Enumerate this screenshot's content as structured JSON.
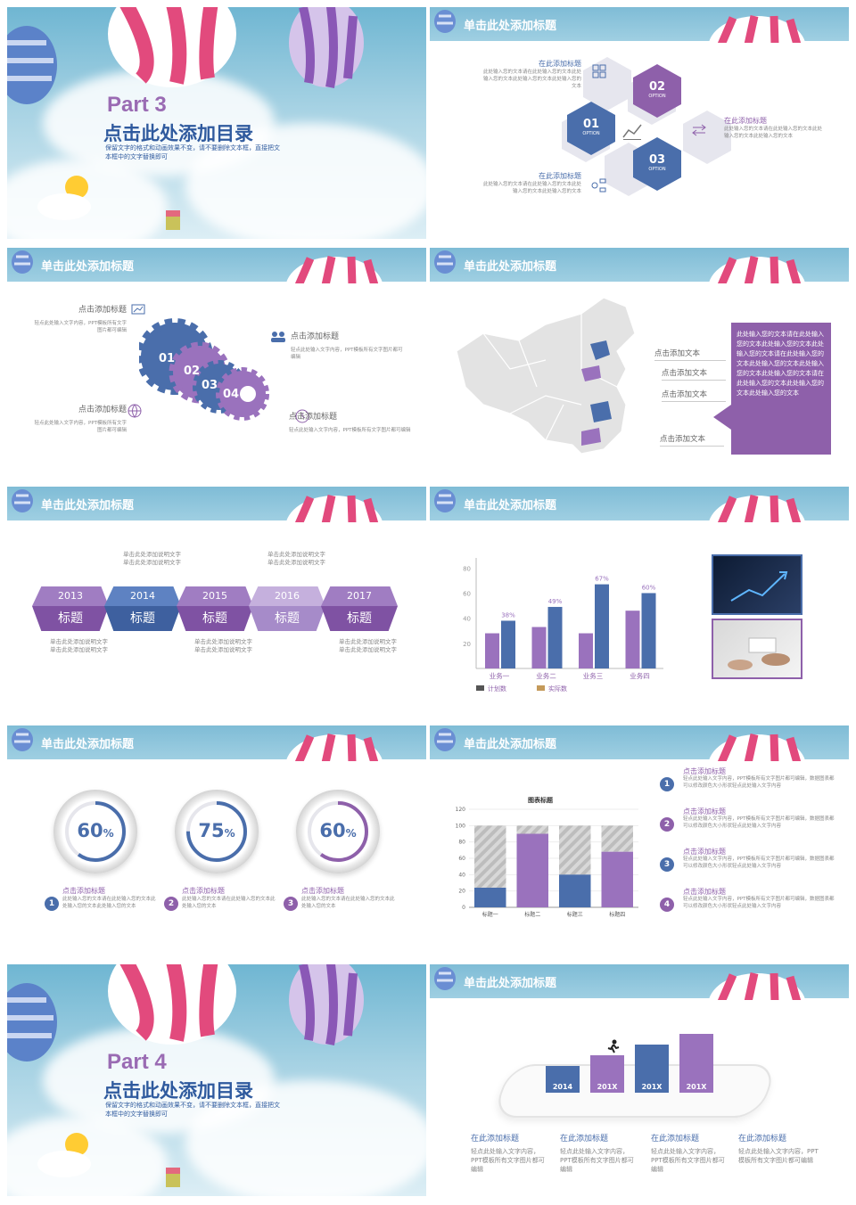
{
  "colors": {
    "purple": "#9a6bb3",
    "blue": "#4a6eab",
    "light_purple": "#b79fd0",
    "header": "#8cc4da"
  },
  "common": {
    "header_title": "单击此处添加标题"
  },
  "cover1": {
    "part": "Part 3",
    "title": "点击此处添加目录",
    "desc": "保留文字的格式和动画效果不变，请不要删除文本框，直接把文本框中的文字替换即可"
  },
  "cover2": {
    "part": "Part 4",
    "title": "点击此处添加目录",
    "desc": "保留文字的格式和动画效果不变，请不要删除文本框，直接把文本框中的文字替换即可"
  },
  "slide_hex": {
    "hexes": [
      {
        "num": "01",
        "sub": "OPTION"
      },
      {
        "num": "02",
        "sub": "OPTION"
      },
      {
        "num": "03",
        "sub": "OPTION"
      }
    ],
    "items": [
      {
        "title": "在此添加标题",
        "text": "此处输入您的文本请在此处输入您的文本此处输入您的文本此处输入您的文本此处输入您的文本"
      },
      {
        "title": "在此添加标题",
        "text": "此处输入您的文本请在此处输入您的文本此处输入您的文本此处输入您的文本"
      },
      {
        "title": "在此添加标题",
        "text": "此处输入您的文本请在此处输入您的文本此处输入您的文本此处输入您的文本"
      }
    ]
  },
  "slide_gears": {
    "gear_nums": [
      "01",
      "02",
      "03",
      "04"
    ],
    "items": [
      {
        "title": "点击添加标题",
        "text": "轻点此处输入文字内容，PPT模板所有文字图片都可编辑"
      },
      {
        "title": "点击添加标题",
        "text": "轻点此处输入文字内容，PPT模板所有文字图片都可编辑"
      },
      {
        "title": "点击添加标题",
        "text": "轻点此处输入文字内容，PPT模板所有文字图片都可编辑"
      },
      {
        "title": "点击添加标题",
        "text": "轻点此处输入文字内容，PPT模板所有文字图片都可编辑"
      }
    ]
  },
  "slide_map": {
    "labels": [
      "点击添加文本",
      "点击添加文本",
      "点击添加文本",
      "点击添加文本"
    ],
    "box_text": "此处输入您的文本请在此处输入您的文本此处输入您的文本此处输入您的文本请在此处输入您的文本此处输入您的文本此处输入您的文本此处输入您的文本请在此处输入您的文本此处输入您的文本此处输入您的文本"
  },
  "slide_timeline": {
    "years": [
      "2013",
      "2014",
      "2015",
      "2016",
      "2017"
    ],
    "labels": [
      "标题",
      "标题",
      "标题",
      "标题",
      "标题"
    ],
    "top_notes": [
      "单击此处添加说明文字单击此处添加说明文字",
      "单击此处添加说明文字单击此处添加说明文字"
    ],
    "bottom_notes": [
      "单击此处添加说明文字单击此处添加说明文字",
      "单击此处添加说明文字单击此处添加说明文字",
      "单击此处添加说明文字单击此处添加说明文字"
    ]
  },
  "slide_bars": {
    "chart_data": {
      "type": "bar",
      "categories": [
        "业务一",
        "业务二",
        "业务三",
        "业务四"
      ],
      "series": [
        {
          "name": "计划数",
          "values": [
            28,
            33,
            28,
            46
          ]
        },
        {
          "name": "实际数",
          "values": [
            38,
            49,
            67,
            60
          ]
        }
      ],
      "data_labels": [
        "38%",
        "49%",
        "67%",
        "60%"
      ],
      "yticks": [
        "20",
        "40",
        "60",
        "80"
      ],
      "ylim": [
        0,
        88
      ]
    }
  },
  "slide_rings": {
    "rings": [
      {
        "value": "60",
        "unit": "%",
        "pct": 60
      },
      {
        "value": "75",
        "unit": "%",
        "pct": 75
      },
      {
        "value": "60",
        "unit": "%",
        "pct": 60
      }
    ],
    "items": [
      {
        "num": "1",
        "title": "点击添加标题",
        "text": "此处输入您的文本请在此处输入您的文本此处输入您的文本此处输入您的文本"
      },
      {
        "num": "2",
        "title": "点击添加标题",
        "text": "此处输入您的文本请在此处输入您的文本此处输入您的文本"
      },
      {
        "num": "3",
        "title": "点击添加标题",
        "text": "此处输入您的文本请在此处输入您的文本此处输入您的文本"
      }
    ]
  },
  "slide_stacked": {
    "chart_data": {
      "type": "bar",
      "title": "图表标题",
      "categories": [
        "标题一",
        "标题二",
        "标题三",
        "标题四"
      ],
      "series": [
        {
          "name": "数值",
          "values": [
            24,
            90,
            40,
            68
          ]
        },
        {
          "name": "剩余",
          "values": [
            76,
            10,
            60,
            32
          ]
        }
      ],
      "yticks": [
        "0",
        "20",
        "40",
        "60",
        "80",
        "100",
        "120"
      ],
      "ylim": [
        0,
        120
      ]
    },
    "items": [
      {
        "num": "1",
        "title": "点击添加标题",
        "text": "轻点此处输入文字内容，PPT模板所有文字图片都可编辑，数据图表都可以修改颜色大小形状轻点此处输入文字内容"
      },
      {
        "num": "2",
        "title": "点击添加标题",
        "text": "轻点此处输入文字内容，PPT模板所有文字图片都可编辑，数据图表都可以修改颜色大小形状轻点此处输入文字内容"
      },
      {
        "num": "3",
        "title": "点击添加标题",
        "text": "轻点此处输入文字内容，PPT模板所有文字图片都可编辑，数据图表都可以修改颜色大小形状轻点此处输入文字内容"
      },
      {
        "num": "4",
        "title": "点击添加标题",
        "text": "轻点此处输入文字内容，PPT模板所有文字图片都可编辑，数据图表都可以修改颜色大小形状轻点此处输入文字内容"
      }
    ]
  },
  "slide_phone": {
    "bars": [
      {
        "label": "2014",
        "value": 1
      },
      {
        "label": "201X",
        "value": 2
      },
      {
        "label": "201X",
        "value": 3
      },
      {
        "label": "201X",
        "value": 4
      }
    ],
    "items": [
      {
        "title": "在此添加标题",
        "text": "轻点此处输入文字内容，PPT模板所有文字图片都可编辑"
      },
      {
        "title": "在此添加标题",
        "text": "轻点此处输入文字内容，PPT模板所有文字图片都可编辑"
      },
      {
        "title": "在此添加标题",
        "text": "轻点此处输入文字内容，PPT模板所有文字图片都可编辑"
      },
      {
        "title": "在此添加标题",
        "text": "轻点此处输入文字内容，PPT模板所有文字图片都可编辑"
      }
    ]
  }
}
